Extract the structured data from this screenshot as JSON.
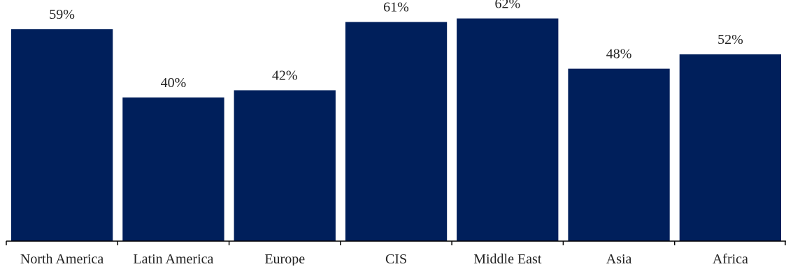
{
  "chart_data": {
    "type": "bar",
    "categories": [
      "North America",
      "Latin America",
      "Europe",
      "CIS",
      "Middle East",
      "Asia",
      "Africa"
    ],
    "values": [
      59,
      40,
      42,
      61,
      62,
      48,
      52
    ],
    "value_labels": [
      "59%",
      "40%",
      "42%",
      "61%",
      "62%",
      "48%",
      "52%"
    ],
    "unit": "%",
    "title": "",
    "xlabel": "",
    "ylabel": "",
    "ylim": [
      0,
      65
    ],
    "grid": false,
    "legend": "none",
    "bar_color": "#001f5b",
    "axis_color": "#000000"
  }
}
